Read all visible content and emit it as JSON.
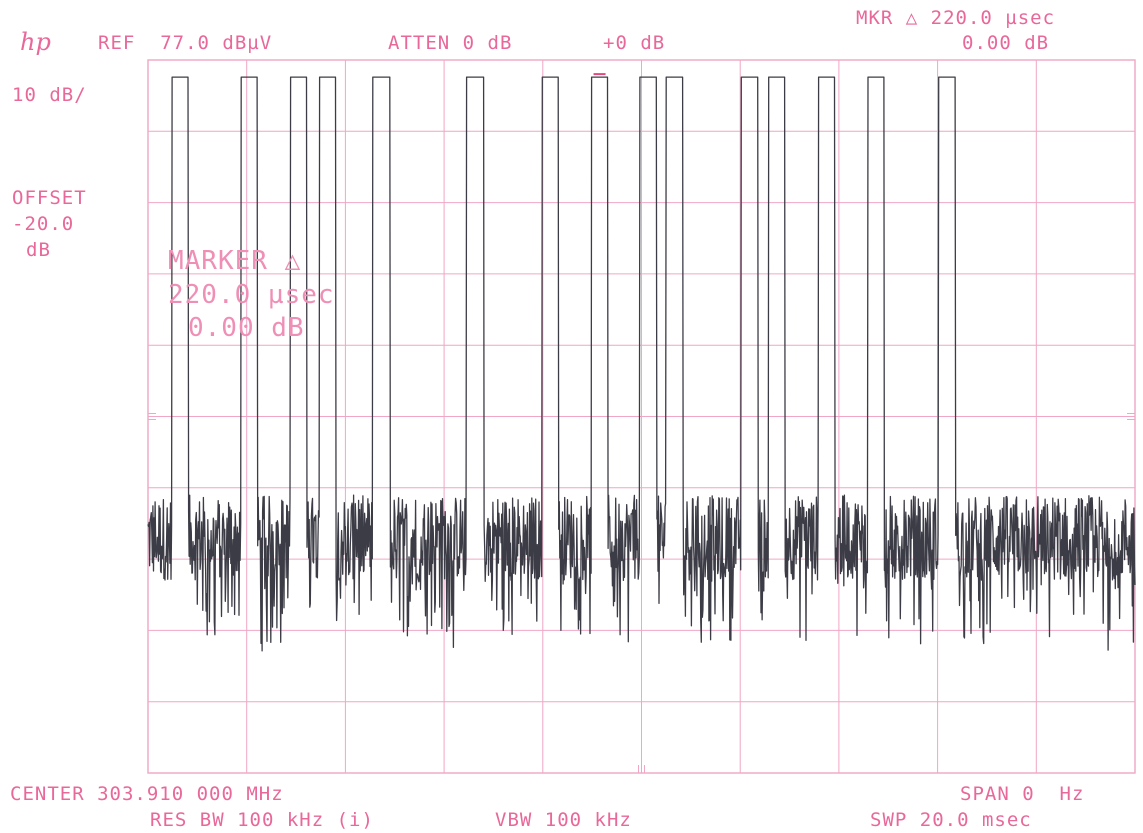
{
  "colors": {
    "grid": "#f0a6c4",
    "text": "#e8689a",
    "trace": "#3c3c46"
  },
  "header": {
    "logo": "hp",
    "ref": "REF  77.0 dBµV",
    "atten": "ATTEN 0 dB",
    "offset_db": "+0 dB",
    "mkr_line1": "MKR △ 220.0 µsec",
    "mkr_line2": "0.00 dB",
    "scale": "10 dB/",
    "offset_label": "OFFSET",
    "offset_value": "-20.0",
    "offset_unit": "dB"
  },
  "marker_readout": {
    "line1": "MARKER △",
    "line2": "220.0 µsec",
    "line3": "0.00 dB"
  },
  "footer": {
    "center": "CENTER 303.910 000 MHz",
    "res_bw": "RES BW 100 kHz (i)",
    "vbw": "VBW 100 kHz",
    "span": "SPAN 0  Hz",
    "swp": "SWP 20.0 msec"
  },
  "chart_data": {
    "type": "line",
    "x_unit": "msec",
    "xlim": [
      0,
      20
    ],
    "ylim": [
      -23,
      77
    ],
    "y_unit": "dBµV",
    "grid": "on",
    "gridlines": {
      "x_divisions": 10,
      "y_divisions": 10
    },
    "pulse_high_db": 74.6,
    "noise_floor_db": 10,
    "pulses_ms": [
      [
        0.48,
        0.82
      ],
      [
        1.88,
        2.22
      ],
      [
        2.88,
        3.22
      ],
      [
        3.47,
        3.81
      ],
      [
        4.55,
        4.9
      ],
      [
        6.45,
        6.8
      ],
      [
        7.98,
        8.32
      ],
      [
        8.98,
        9.32
      ],
      [
        9.96,
        10.31
      ],
      [
        10.5,
        10.84
      ],
      [
        12.02,
        12.36
      ],
      [
        12.57,
        12.91
      ],
      [
        13.58,
        13.92
      ],
      [
        14.58,
        14.92
      ],
      [
        16.02,
        16.36
      ]
    ],
    "marker_delta": {
      "time": "220.0 µsec",
      "amplitude": "0.00 dB"
    }
  }
}
